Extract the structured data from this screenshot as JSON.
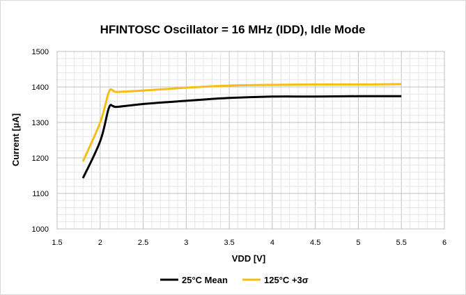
{
  "chart_data": {
    "type": "line",
    "title": "HFINTOSC Oscillator = 16 MHz (IDD), Idle Mode",
    "xlabel": "VDD [V]",
    "ylabel": "Current [µA]",
    "xlim": [
      1.5,
      6
    ],
    "ylim": [
      1000,
      1500
    ],
    "x_ticks": [
      1.5,
      2,
      2.5,
      3,
      3.5,
      4,
      4.5,
      5,
      5.5,
      6
    ],
    "y_ticks": [
      1000,
      1100,
      1200,
      1300,
      1400,
      1500
    ],
    "x_tick_labels": [
      "1.5",
      "2",
      "2.5",
      "3",
      "3.5",
      "4",
      "4.5",
      "5",
      "5.5",
      "6"
    ],
    "y_tick_labels": [
      "1000",
      "1100",
      "1200",
      "1300",
      "1400",
      "1500"
    ],
    "grid": true,
    "legend_position": "bottom",
    "series": [
      {
        "name": "25°C Mean",
        "color": "#000000",
        "x": [
          1.8,
          2.0,
          2.1,
          2.15,
          2.2,
          2.5,
          3.0,
          3.5,
          4.0,
          4.5,
          5.0,
          5.5
        ],
        "y": [
          1143,
          1247,
          1340,
          1346,
          1344,
          1352,
          1361,
          1369,
          1373,
          1373,
          1374,
          1374
        ]
      },
      {
        "name": "125°C +3σ",
        "color": "#F5BE17",
        "x": [
          1.8,
          2.0,
          2.1,
          2.15,
          2.2,
          2.5,
          3.0,
          3.5,
          4.0,
          4.5,
          5.0,
          5.5
        ],
        "y": [
          1190,
          1300,
          1385,
          1390,
          1386,
          1390,
          1398,
          1404,
          1406,
          1407,
          1407,
          1408
        ]
      }
    ]
  }
}
